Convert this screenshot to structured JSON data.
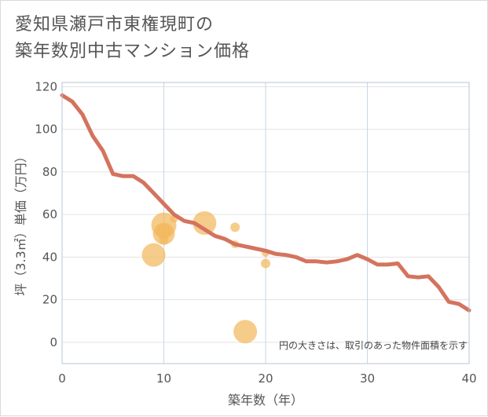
{
  "title": {
    "line1": "愛知県瀬戸市東権現町の",
    "line2": "築年数別中古マンション価格"
  },
  "colors": {
    "line": "#d4735e",
    "bubble": "#f3b85e",
    "grid_v": "#c7d6e6",
    "grid_h": "#e3e3e3",
    "plot_border": "#b8c6d6"
  },
  "chart_data": {
    "type": "scatter",
    "xlabel": "築年数（年）",
    "ylabel": "坪（3.3㎡）単価（万円）",
    "xlim": [
      0,
      40
    ],
    "ylim": [
      -10,
      122
    ],
    "x_ticks": [
      0,
      10,
      20,
      30,
      40
    ],
    "y_ticks": [
      0,
      20,
      40,
      60,
      80,
      100,
      120
    ],
    "annotation": "円の大きさは、取引のあった物件面積を示す",
    "line": {
      "x": [
        0,
        1,
        2,
        3,
        4,
        5,
        6,
        7,
        8,
        9,
        10,
        11,
        12,
        13,
        14,
        15,
        16,
        17,
        18,
        19,
        20,
        21,
        22,
        23,
        24,
        25,
        26,
        27,
        28,
        29,
        30,
        31,
        32,
        33,
        34,
        35,
        36,
        37,
        38,
        39,
        40
      ],
      "y": [
        116,
        113,
        107,
        97,
        90,
        79,
        78,
        78,
        75,
        70,
        65,
        60,
        57,
        56,
        53,
        50,
        48.5,
        46,
        45,
        44,
        43,
        41.5,
        41,
        40,
        38,
        38,
        37.5,
        38,
        39,
        41,
        39,
        36.5,
        36.5,
        37,
        31,
        30.5,
        31,
        26,
        19,
        18,
        15
      ]
    },
    "bubbles": [
      {
        "x": 9,
        "y": 41,
        "size": 15
      },
      {
        "x": 10,
        "y": 55,
        "size": 16
      },
      {
        "x": 10,
        "y": 52,
        "size": 10
      },
      {
        "x": 10,
        "y": 51,
        "size": 14
      },
      {
        "x": 10,
        "y": 48,
        "size": 6
      },
      {
        "x": 11,
        "y": 58,
        "size": 5
      },
      {
        "x": 14,
        "y": 56,
        "size": 15
      },
      {
        "x": 17,
        "y": 54,
        "size": 6
      },
      {
        "x": 17,
        "y": 46,
        "size": 5
      },
      {
        "x": 18,
        "y": 5,
        "size": 15
      },
      {
        "x": 20,
        "y": 42,
        "size": 5
      },
      {
        "x": 20,
        "y": 37,
        "size": 6
      }
    ]
  }
}
